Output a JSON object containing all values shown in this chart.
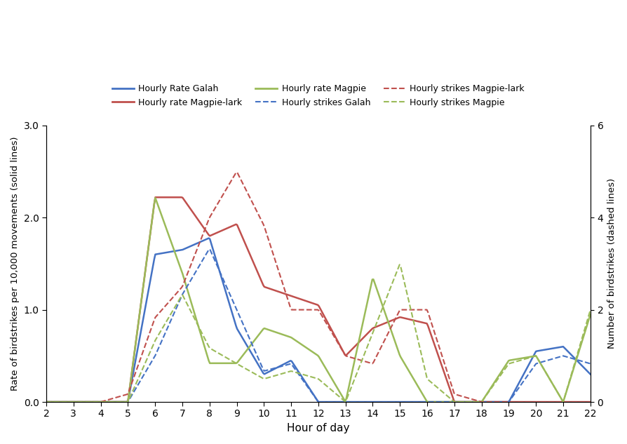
{
  "hours": [
    2,
    3,
    4,
    5,
    6,
    7,
    8,
    9,
    10,
    11,
    12,
    13,
    14,
    15,
    16,
    17,
    18,
    19,
    20,
    21,
    22
  ],
  "rate_galah": [
    0.0,
    0.0,
    0.0,
    0.0,
    1.6,
    1.65,
    1.78,
    0.8,
    0.3,
    0.45,
    0.0,
    0.0,
    0.0,
    0.0,
    0.0,
    0.0,
    0.0,
    0.0,
    0.55,
    0.6,
    0.3
  ],
  "rate_magpielark": [
    0.0,
    0.0,
    0.0,
    0.0,
    2.22,
    2.22,
    1.8,
    1.93,
    1.25,
    1.15,
    1.05,
    0.5,
    0.8,
    0.92,
    0.85,
    0.0,
    0.0,
    0.0,
    0.0,
    0.0,
    0.0
  ],
  "rate_magpie": [
    0.0,
    0.0,
    0.0,
    0.0,
    2.22,
    1.4,
    0.42,
    0.42,
    0.8,
    0.7,
    0.5,
    0.0,
    1.35,
    0.5,
    0.0,
    0.0,
    0.0,
    0.45,
    0.5,
    0.0,
    0.95
  ],
  "strikes_galah": [
    0.0,
    0.0,
    0.0,
    0.0,
    1.0,
    2.33,
    3.33,
    2.0,
    0.67,
    0.83,
    0.0,
    0.0,
    0.0,
    0.0,
    0.0,
    0.0,
    0.0,
    0.0,
    0.83,
    1.0,
    0.83
  ],
  "strikes_magpielark": [
    0.0,
    0.0,
    0.0,
    0.17,
    1.83,
    2.5,
    4.0,
    5.0,
    3.83,
    2.0,
    2.0,
    1.0,
    0.83,
    2.0,
    2.0,
    0.17,
    0.0,
    0.0,
    0.0,
    0.0,
    0.0
  ],
  "strikes_magpie": [
    0.0,
    0.0,
    0.0,
    0.0,
    1.33,
    2.33,
    1.17,
    0.83,
    0.5,
    0.67,
    0.5,
    0.0,
    1.5,
    3.0,
    0.5,
    0.0,
    0.0,
    0.83,
    1.0,
    0.0,
    2.0
  ],
  "color_galah": "#4472C4",
  "color_magpielark": "#C0504D",
  "color_magpie": "#9BBB59",
  "legend_rate_galah": "Hourly Rate Galah",
  "legend_rate_magpielark": "Hourly rate Magpie-lark",
  "legend_rate_magpie": "Hourly rate Magpie",
  "legend_strikes_galah": "Hourly strikes Galah",
  "legend_strikes_magpielark": "Hourly strikes Magpie-lark",
  "legend_strikes_magpie": "Hourly strikes Magpie",
  "xlabel": "Hour of day",
  "ylabel_left": "Rate of birdstrikes per 10,000 movements (solid lines)",
  "ylabel_right": "Number of birdstrikes (dashed lines)",
  "ylim_left": [
    0.0,
    3.0
  ],
  "ylim_right": [
    0,
    6
  ],
  "yticks_left": [
    0.0,
    1.0,
    2.0,
    3.0
  ],
  "yticks_right": [
    0,
    2,
    4,
    6
  ],
  "xticks": [
    2,
    3,
    4,
    5,
    6,
    7,
    8,
    9,
    10,
    11,
    12,
    13,
    14,
    15,
    16,
    17,
    18,
    19,
    20,
    21,
    22
  ]
}
